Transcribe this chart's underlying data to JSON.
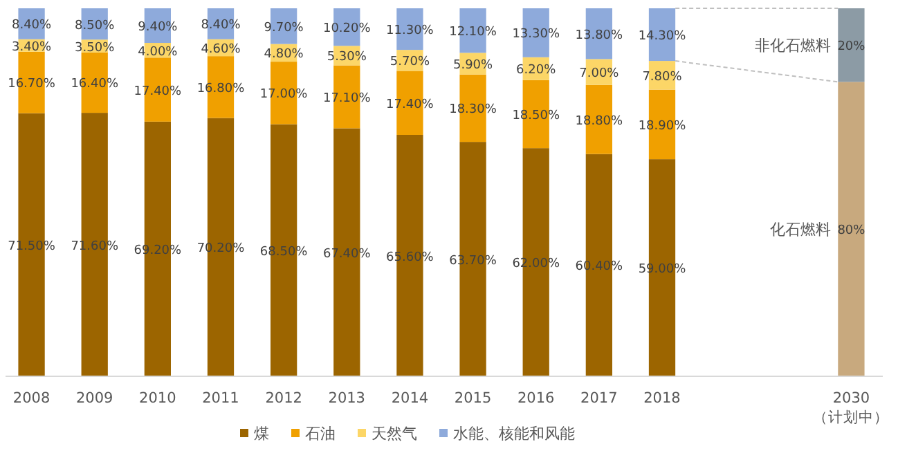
{
  "chart_data": {
    "type": "bar",
    "stacked": true,
    "legend": "bottom",
    "categories": [
      "2008",
      "2009",
      "2010",
      "2011",
      "2012",
      "2013",
      "2014",
      "2015",
      "2016",
      "2017",
      "2018",
      null,
      null,
      "2030\n（计划中）"
    ],
    "series": [
      {
        "name": "煤",
        "color": "#9c6500",
        "values": [
          71.5,
          71.6,
          69.2,
          70.2,
          68.5,
          67.4,
          65.6,
          63.7,
          62.0,
          60.4,
          59.0,
          null,
          null,
          null
        ],
        "value_labels": [
          "71.50%",
          "71.60%",
          "69.20%",
          "70.20%",
          "68.50%",
          "67.40%",
          "65.60%",
          "63.70%",
          "62.00%",
          "60.40%",
          "59.00%",
          null,
          null,
          null
        ]
      },
      {
        "name": "石油",
        "color": "#f0a000",
        "values": [
          16.7,
          16.4,
          17.4,
          16.8,
          17.0,
          17.1,
          17.4,
          18.3,
          18.5,
          18.8,
          18.9,
          null,
          null,
          null
        ],
        "value_labels": [
          "16.70%",
          "16.40%",
          "17.40%",
          "16.80%",
          "17.00%",
          "17.10%",
          "17.40%",
          "18.30%",
          "18.50%",
          "18.80%",
          "18.90%",
          null,
          null,
          null
        ]
      },
      {
        "name": "天然气",
        "color": "#fcd667",
        "values": [
          3.4,
          3.5,
          4.0,
          4.6,
          4.8,
          5.3,
          5.7,
          5.9,
          6.2,
          7.0,
          7.8,
          null,
          null,
          null
        ],
        "value_labels": [
          "3.40%",
          "3.50%",
          "4.00%",
          "4.60%",
          "4.80%",
          "5.30%",
          "5.70%",
          "5.90%",
          "6.20%",
          "7.00%",
          "7.80%",
          null,
          null,
          null
        ]
      },
      {
        "name": "水能、核能和风能",
        "color": "#8eaadb",
        "values": [
          8.4,
          8.5,
          9.4,
          8.4,
          9.7,
          10.2,
          11.3,
          12.1,
          13.3,
          13.8,
          14.3,
          null,
          null,
          null
        ],
        "value_labels": [
          "8.40%",
          "8.50%",
          "9.40%",
          "8.40%",
          "9.70%",
          "10.20%",
          "11.30%",
          "12.10%",
          "13.30%",
          "13.80%",
          "14.30%",
          null,
          null,
          null
        ]
      },
      {
        "name": "化石燃料",
        "color": "#c8a97e",
        "values": [
          null,
          null,
          null,
          null,
          null,
          null,
          null,
          null,
          null,
          null,
          null,
          null,
          null,
          80
        ],
        "value_labels": [
          null,
          null,
          null,
          null,
          null,
          null,
          null,
          null,
          null,
          null,
          null,
          null,
          null,
          "80%"
        ]
      },
      {
        "name": "非化石燃料",
        "color": "#8c9ba5",
        "values": [
          null,
          null,
          null,
          null,
          null,
          null,
          null,
          null,
          null,
          null,
          null,
          null,
          null,
          20
        ],
        "value_labels": [
          null,
          null,
          null,
          null,
          null,
          null,
          null,
          null,
          null,
          null,
          null,
          null,
          null,
          "20%"
        ]
      }
    ]
  }
}
